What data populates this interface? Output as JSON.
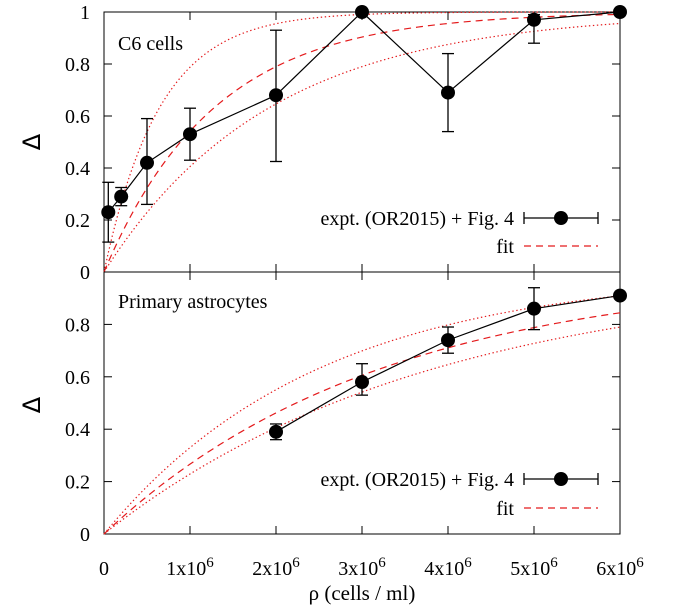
{
  "chart_data": [
    {
      "type": "scatter",
      "panel_label": "C6 cells",
      "ylabel": "Δ",
      "xlim": [
        0,
        6000000
      ],
      "ylim": [
        0,
        1
      ],
      "y_ticks": [
        "0",
        "0.2",
        "0.4",
        "0.6",
        "0.8",
        "1"
      ],
      "y_tick_values": [
        0,
        0.2,
        0.4,
        0.6,
        0.8,
        1
      ],
      "legend": {
        "position": "bottom-right",
        "entries": [
          "expt. (OR2015) + Fig. 4",
          "fit"
        ]
      },
      "series": [
        {
          "name": "expt. (OR2015) + Fig. 4",
          "style": "points-errorbars-line",
          "color": "#000000",
          "x": [
            50000,
            200000,
            500000,
            1000000,
            2000000,
            3000000,
            4000000,
            5000000,
            6000000
          ],
          "y": [
            0.23,
            0.29,
            0.42,
            0.53,
            0.68,
            1.0,
            0.69,
            0.97,
            1.0
          ],
          "y_low": [
            0.115,
            0.255,
            0.26,
            0.43,
            0.425,
            1.0,
            0.54,
            0.88,
            1.0
          ],
          "y_high": [
            0.345,
            0.325,
            0.59,
            0.63,
            0.93,
            1.0,
            0.84,
            0.99,
            1.0
          ]
        },
        {
          "name": "fit",
          "style": "dashed",
          "color": "#e41a1c",
          "rate_per_million": 0.78
        },
        {
          "style": "dotted",
          "color": "#e41a1c",
          "rate_per_million": 1.55
        },
        {
          "style": "dotted",
          "color": "#e41a1c",
          "rate_per_million": 0.52
        }
      ]
    },
    {
      "type": "scatter",
      "panel_label": "Primary astrocytes",
      "ylabel": "Δ",
      "xlabel": "ρ (cells / ml)",
      "xlim": [
        0,
        6000000
      ],
      "ylim": [
        0,
        1
      ],
      "y_ticks": [
        "0",
        "0.2",
        "0.4",
        "0.6",
        "0.8"
      ],
      "y_tick_values": [
        0,
        0.2,
        0.4,
        0.6,
        0.8
      ],
      "x_ticks": [
        {
          "value": 0,
          "mant": "0",
          "exp": ""
        },
        {
          "value": 1000000,
          "mant": "1x10",
          "exp": "6"
        },
        {
          "value": 2000000,
          "mant": "2x10",
          "exp": "6"
        },
        {
          "value": 3000000,
          "mant": "3x10",
          "exp": "6"
        },
        {
          "value": 4000000,
          "mant": "4x10",
          "exp": "6"
        },
        {
          "value": 5000000,
          "mant": "5x10",
          "exp": "6"
        },
        {
          "value": 6000000,
          "mant": "6x10",
          "exp": "6"
        }
      ],
      "legend": {
        "position": "bottom-right",
        "entries": [
          "expt. (OR2015) + Fig. 4",
          "fit"
        ]
      },
      "series": [
        {
          "name": "expt. (OR2015) + Fig. 4",
          "style": "points-errorbars-line",
          "color": "#000000",
          "x": [
            2000000,
            3000000,
            4000000,
            5000000,
            6000000
          ],
          "y": [
            0.39,
            0.58,
            0.74,
            0.86,
            0.91
          ],
          "y_low": [
            0.36,
            0.53,
            0.69,
            0.78,
            0.91
          ],
          "y_high": [
            0.42,
            0.65,
            0.79,
            0.94,
            0.91
          ]
        },
        {
          "name": "fit",
          "style": "dashed",
          "color": "#e41a1c",
          "rate_per_million": 0.31
        },
        {
          "style": "dotted",
          "color": "#e41a1c",
          "rate_per_million": 0.4
        },
        {
          "style": "dotted",
          "color": "#e41a1c",
          "rate_per_million": 0.26
        }
      ]
    }
  ]
}
